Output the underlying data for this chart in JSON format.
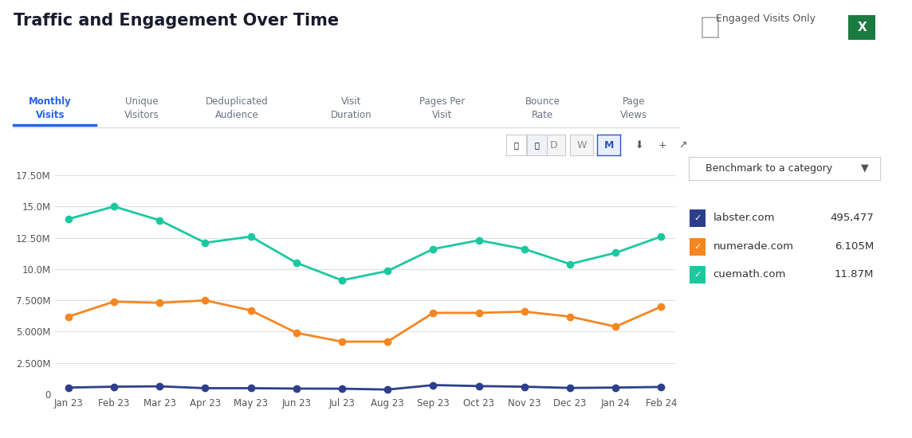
{
  "title": "Traffic and Engagement Over Time",
  "background_color": "#ffffff",
  "months": [
    "Jan 23",
    "Feb 23",
    "Mar 23",
    "Apr 23",
    "May 23",
    "Jun 23",
    "Jul 23",
    "Aug 23",
    "Sep 23",
    "Oct 23",
    "Nov 23",
    "Dec 23",
    "Jan 24",
    "Feb 24"
  ],
  "cuemath": [
    14000000,
    15000000,
    13900000,
    12100000,
    12600000,
    10500000,
    9100000,
    9850000,
    11600000,
    12300000,
    11600000,
    10400000,
    11300000,
    12600000
  ],
  "numerade": [
    6200000,
    7400000,
    7300000,
    7500000,
    6700000,
    4900000,
    4200000,
    4200000,
    6500000,
    6500000,
    6600000,
    6200000,
    5400000,
    7000000
  ],
  "labster": [
    530000,
    600000,
    630000,
    480000,
    480000,
    450000,
    440000,
    370000,
    730000,
    650000,
    600000,
    500000,
    530000,
    580000
  ],
  "cuemath_color": "#1cc8a0",
  "numerade_color": "#f58620",
  "labster_color": "#2d3f8c",
  "ylim": [
    0,
    17500000
  ],
  "yticks": [
    0,
    2500000,
    5000000,
    7500000,
    10000000,
    12500000,
    15000000,
    17500000
  ],
  "ytick_labels": [
    "0",
    "2.500M",
    "5.000M",
    "7.500M",
    "10.0M",
    "12.50M",
    "15.0M",
    "17.50M"
  ],
  "legend_entries": [
    {
      "label": "labster.com",
      "value": "495,477",
      "color": "#2d3f8c"
    },
    {
      "label": "numerade.com",
      "value": "6.105M",
      "color": "#f58620"
    },
    {
      "label": "cuemath.com",
      "value": "11.87M",
      "color": "#1cc8a0"
    }
  ],
  "tab_labels": [
    "Monthly\nVisits",
    "Unique\nVisitors",
    "Deduplicated\nAudience",
    "Visit\nDuration",
    "Pages Per\nVisit",
    "Bounce\nRate",
    "Page\nViews"
  ],
  "active_tab": 0,
  "active_tab_color": "#2563eb",
  "inactive_tab_color": "#6b7280",
  "benchmark_label": "Benchmark to a category",
  "engaged_visits_label": "Engaged Visits Only",
  "dwm_buttons": [
    "D",
    "W",
    "M"
  ],
  "active_dwm": 2
}
